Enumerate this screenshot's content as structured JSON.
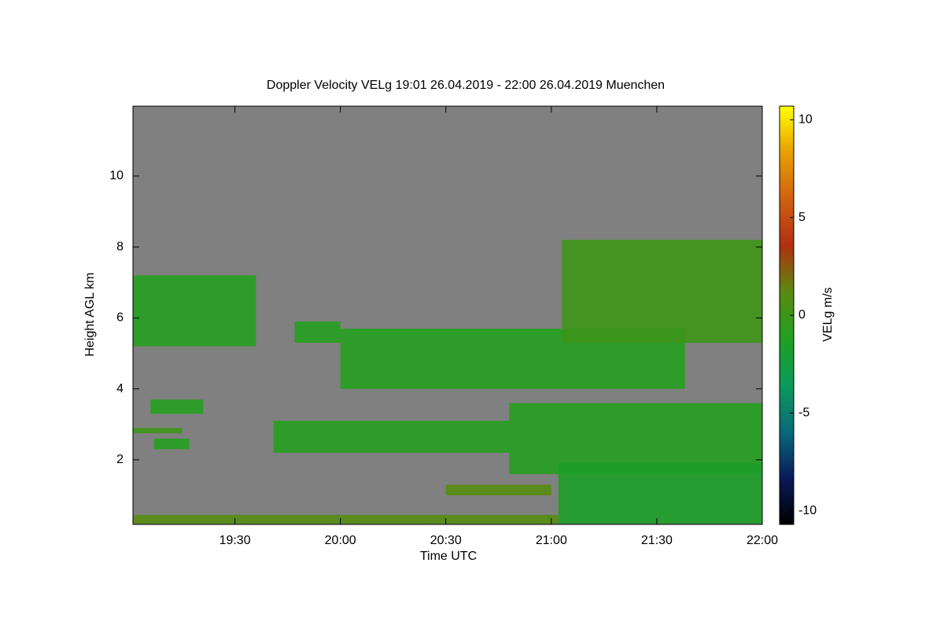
{
  "chart_data": {
    "type": "time-height",
    "title": "Doppler Velocity VELg   19:01 26.04.2019 - 22:00 26.04.2019 Muenchen",
    "x_label": "Time UTC",
    "y_label": "Height AGL km",
    "colorbar_label": "VELg m/s",
    "xlim": [
      19.0167,
      22.0
    ],
    "xticks": [
      {
        "value": 19.5,
        "label": "19:30"
      },
      {
        "value": 20.0,
        "label": "20:00"
      },
      {
        "value": 20.5,
        "label": "20:30"
      },
      {
        "value": 21.0,
        "label": "21:00"
      },
      {
        "value": 21.5,
        "label": "21:30"
      },
      {
        "value": 22.0,
        "label": "22:00"
      }
    ],
    "ylim": [
      0.18,
      11.97
    ],
    "yticks": [
      2,
      4,
      6,
      8,
      10
    ],
    "clim": [
      -10.7,
      10.7
    ],
    "cticks": [
      -10,
      -5,
      0,
      5,
      10
    ],
    "background_color": "#808080",
    "colormap": [
      "#000000",
      "#0a1a5a",
      "#0a6a7a",
      "#0a9a5a",
      "#20a020",
      "#5a8a10",
      "#b03010",
      "#d06010",
      "#e8a000",
      "#ffff00"
    ],
    "layers": [
      {
        "x": [
          19.0167,
          19.6
        ],
        "y": [
          5.2,
          7.2
        ],
        "value": -1
      },
      {
        "x": [
          19.1,
          19.35
        ],
        "y": [
          3.3,
          3.7
        ],
        "value": -1
      },
      {
        "x": [
          19.0167,
          19.25
        ],
        "y": [
          2.75,
          2.9
        ],
        "value": 0
      },
      {
        "x": [
          19.1167,
          19.2833
        ],
        "y": [
          2.3,
          2.6
        ],
        "value": -1
      },
      {
        "x": [
          19.7833,
          20.0
        ],
        "y": [
          5.3,
          5.9
        ],
        "value": -1
      },
      {
        "x": [
          20.0,
          21.6333
        ],
        "y": [
          4.0,
          5.7
        ],
        "value": -1
      },
      {
        "x": [
          21.05,
          22.0
        ],
        "y": [
          5.3,
          8.2
        ],
        "value": 0
      },
      {
        "x": [
          19.6833,
          20.8
        ],
        "y": [
          2.2,
          3.1
        ],
        "value": -1
      },
      {
        "x": [
          20.8,
          22.0
        ],
        "y": [
          1.6,
          3.6
        ],
        "value": -1
      },
      {
        "x": [
          20.5,
          21.0
        ],
        "y": [
          1.0,
          1.3
        ],
        "value": 1
      },
      {
        "x": [
          21.0333,
          22.0
        ],
        "y": [
          0.2,
          1.9
        ],
        "value": -1.5
      },
      {
        "x": [
          19.0167,
          21.0333
        ],
        "y": [
          0.2,
          0.45
        ],
        "value": 1
      }
    ]
  }
}
